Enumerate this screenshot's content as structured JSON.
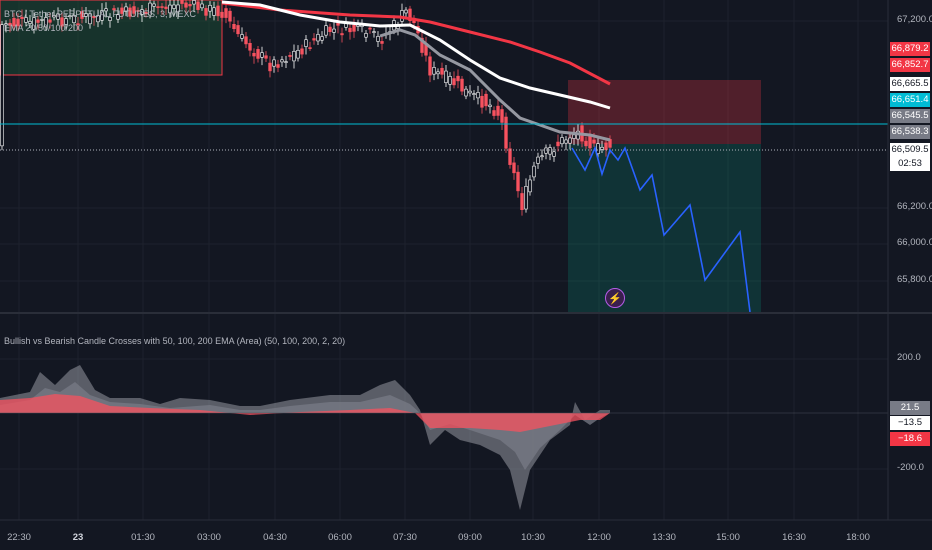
{
  "header": {
    "symbol_title": "BTC / Tether PERPETUAL FUTURES, 3, MEXC",
    "indicator_main": "EMA 20/50/100/200",
    "indicator_sub": "Bullish vs Bearish Candle Crosses with 50, 100, 200 EMA (Area) (50, 100, 200, 2, 20)"
  },
  "price_axis": {
    "ticks": [
      "67,200.0",
      "66,200.0",
      "66,000.0",
      "65,800.0"
    ],
    "tags": [
      {
        "text": "66,879.2",
        "color": "#f23645"
      },
      {
        "text": "66,852.7",
        "color": "#f23645"
      },
      {
        "text": "66,665.5",
        "color": "#ffffff",
        "fg": "#131722"
      },
      {
        "text": "66,651.4",
        "color": "#00bcd4"
      },
      {
        "text": "66,545.5",
        "color": "#787b86"
      },
      {
        "text": "66,538.3",
        "color": "#787b86"
      },
      {
        "text": "66,509.5",
        "color": "#ffffff",
        "fg": "#131722"
      },
      {
        "text": "02:53",
        "color": "#ffffff",
        "fg": "#131722"
      }
    ]
  },
  "osc_axis": {
    "ticks": [
      "200.0",
      "-200.0"
    ],
    "tags": [
      {
        "text": "21.5",
        "color": "#787b86"
      },
      {
        "text": "−13.5",
        "color": "#ffffff",
        "fg": "#131722"
      },
      {
        "text": "−18.6",
        "color": "#f23645"
      }
    ]
  },
  "time_axis": [
    "22:30",
    "23",
    "01:30",
    "03:00",
    "04:30",
    "06:00",
    "07:30",
    "09:00",
    "10:30",
    "12:00",
    "13:30",
    "15:00",
    "16:30",
    "18:00"
  ],
  "colors": {
    "bg": "#131722",
    "bull": "#ffffff",
    "bear": "#f7525f",
    "ema20": "#b2b5be",
    "ema50": "#e8e8e8",
    "ema200": "#f23645",
    "projection": "#2962ff",
    "cyan_line": "#00bcd4"
  },
  "icons": {
    "alert": "lightning-icon"
  }
}
